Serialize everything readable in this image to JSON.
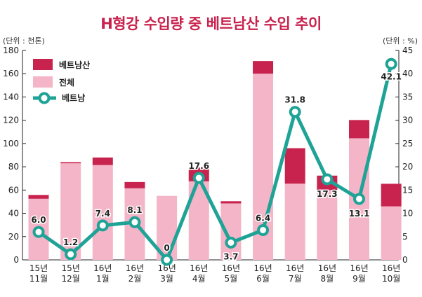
{
  "chart_data": {
    "type": "bar",
    "title": "H형강 수입량 중 베트남산 수입 추이",
    "y_left_unit": "(단위 : 천톤)",
    "y_right_unit": "(단위 : %)",
    "ylim_left": [
      0,
      180
    ],
    "ylim_right": [
      0,
      45
    ],
    "y_left_ticks": [
      "0",
      "20",
      "40",
      "60",
      "80",
      "100",
      "120",
      "140",
      "160",
      "180"
    ],
    "y_right_ticks": [
      "0",
      "5",
      "10",
      "15",
      "20",
      "25",
      "30",
      "35",
      "40",
      "45"
    ],
    "categories": [
      [
        "15년",
        "11월"
      ],
      [
        "15년",
        "12월"
      ],
      [
        "16년",
        "1월"
      ],
      [
        "16년",
        "2월"
      ],
      [
        "16년",
        "3월"
      ],
      [
        "16년",
        "4월"
      ],
      [
        "16년",
        "5월"
      ],
      [
        "16년",
        "6월"
      ],
      [
        "16년",
        "7월"
      ],
      [
        "16년",
        "8월"
      ],
      [
        "16년",
        "9월"
      ],
      [
        "16년",
        "10월"
      ]
    ],
    "legend_position": "top-left",
    "series": [
      {
        "name": "베트남산",
        "type": "bar-stacked",
        "axis": "left",
        "color": "#c8234e",
        "values": [
          3.3,
          1,
          6.5,
          5.4,
          0,
          11.9,
          1.9,
          10.9,
          30.5,
          12.4,
          15.7,
          19.4
        ]
      },
      {
        "name": "전체",
        "type": "bar",
        "axis": "left",
        "color": "#f5b5c8",
        "values": [
          52.5,
          83,
          81.5,
          61.5,
          55,
          67.5,
          48.5,
          160,
          65.5,
          60,
          104.5,
          46
        ]
      },
      {
        "name": "베트남",
        "type": "line",
        "axis": "right",
        "color": "#1fa396",
        "values": [
          6.0,
          1.2,
          7.4,
          8.1,
          0,
          17.6,
          3.7,
          6.4,
          31.8,
          17.3,
          13.1,
          42.1
        ],
        "labels": [
          "6.0",
          "1.2",
          "7.4",
          "8.1",
          "0",
          "17.6",
          "3.7",
          "6.4",
          "31.8",
          "17.3",
          "13.1",
          "42.1"
        ]
      }
    ],
    "grid": false
  }
}
